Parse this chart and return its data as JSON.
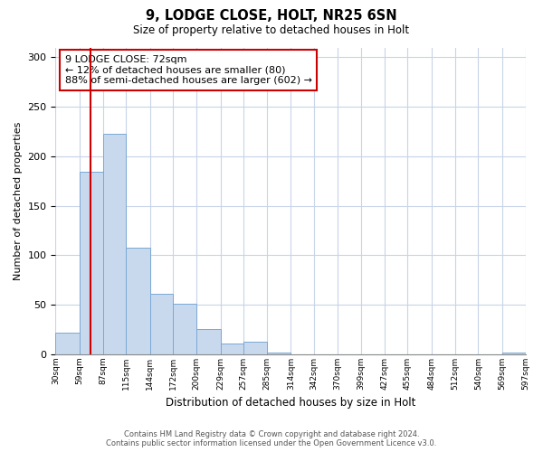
{
  "title": "9, LODGE CLOSE, HOLT, NR25 6SN",
  "subtitle": "Size of property relative to detached houses in Holt",
  "xlabel": "Distribution of detached houses by size in Holt",
  "ylabel": "Number of detached properties",
  "bar_values": [
    22,
    184,
    223,
    108,
    61,
    51,
    26,
    11,
    13,
    2,
    0,
    0,
    0,
    0,
    0,
    0,
    0,
    0,
    0,
    2
  ],
  "bin_edges": [
    30,
    59,
    87,
    115,
    144,
    172,
    200,
    229,
    257,
    285,
    314,
    342,
    370,
    399,
    427,
    455,
    484,
    512,
    540,
    569,
    597
  ],
  "tick_labels": [
    "30sqm",
    "59sqm",
    "87sqm",
    "115sqm",
    "144sqm",
    "172sqm",
    "200sqm",
    "229sqm",
    "257sqm",
    "285sqm",
    "314sqm",
    "342sqm",
    "370sqm",
    "399sqm",
    "427sqm",
    "455sqm",
    "484sqm",
    "512sqm",
    "540sqm",
    "569sqm",
    "597sqm"
  ],
  "bar_fill_color": "#c8d9ee",
  "bar_edge_color": "#7aa8d4",
  "vline_x": 72,
  "vline_color": "#cc0000",
  "ylim": [
    0,
    310
  ],
  "yticks": [
    0,
    50,
    100,
    150,
    200,
    250,
    300
  ],
  "annotation_title": "9 LODGE CLOSE: 72sqm",
  "annotation_line1": "← 12% of detached houses are smaller (80)",
  "annotation_line2": "88% of semi-detached houses are larger (602) →",
  "annotation_box_edge": "#cc0000",
  "footer_line1": "Contains HM Land Registry data © Crown copyright and database right 2024.",
  "footer_line2": "Contains public sector information licensed under the Open Government Licence v3.0.",
  "background_color": "#ffffff",
  "grid_color": "#c8d4e8"
}
